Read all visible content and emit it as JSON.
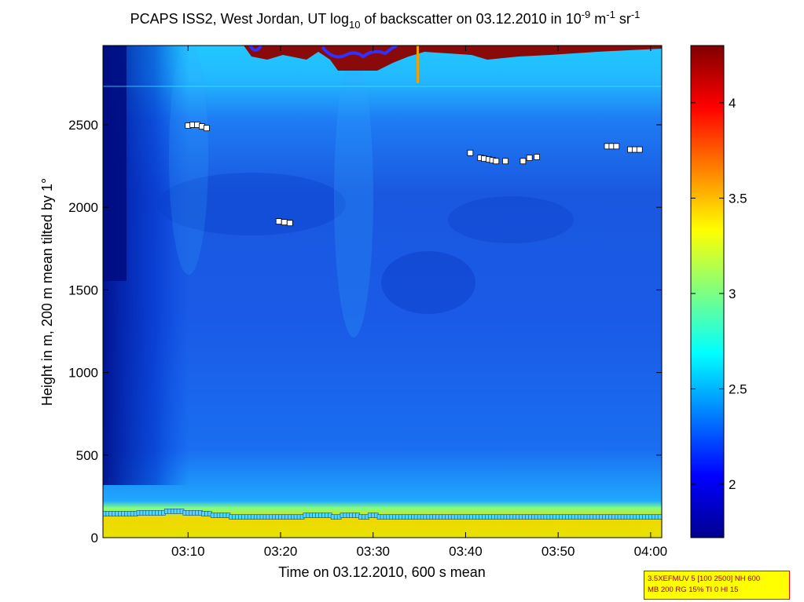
{
  "chart_data": {
    "type": "heatmap",
    "title": {
      "t1": "PCAPS ISS2, West Jordan, UT log",
      "t1_sub": "10",
      "t2": " of backscatter on 03.12.2010 in 10",
      "t2_sup": "-9",
      "t3": " m",
      "t3_sup": "-1",
      "t4": " sr",
      "t4_sup": "-1"
    },
    "xlabel": "Time on 03.12.2010, 600 s mean",
    "ylabel": "Height in m, 200 m mean tilted by 1°",
    "x_ticks": [
      "03:10",
      "03:20",
      "03:30",
      "03:40",
      "03:50",
      "04:00"
    ],
    "x_tick_minutes": [
      10,
      20,
      30,
      40,
      50,
      60
    ],
    "xlim_minutes": [
      0.8,
      61.2
    ],
    "y_ticks": [
      0,
      500,
      1000,
      1500,
      2000,
      2500
    ],
    "ylim": [
      0,
      2980
    ],
    "colorbar": {
      "ticks": [
        "2",
        "2.5",
        "3",
        "3.5",
        "4"
      ],
      "tick_values": [
        2,
        2.5,
        3,
        3.5,
        4
      ],
      "range": [
        1.72,
        4.3
      ],
      "colormap": "jet"
    },
    "mixing_layer_height": {
      "x": [
        1,
        2,
        3,
        4,
        5,
        6,
        7,
        8,
        9,
        10,
        11,
        12,
        13,
        14,
        15,
        16,
        17,
        18,
        19,
        20,
        21,
        22,
        23,
        24,
        25,
        26,
        27,
        28,
        29,
        30,
        31,
        32,
        33,
        34,
        35,
        36,
        37,
        38,
        39,
        40,
        41,
        42,
        43,
        44,
        45,
        46,
        47,
        48,
        49,
        50,
        51,
        52,
        53,
        54,
        55,
        56,
        57,
        58,
        59,
        60,
        61
      ],
      "y": [
        145,
        145,
        145,
        145,
        150,
        150,
        150,
        160,
        160,
        150,
        150,
        145,
        135,
        135,
        125,
        125,
        125,
        125,
        125,
        125,
        125,
        125,
        135,
        135,
        135,
        125,
        135,
        135,
        125,
        135,
        125,
        125,
        125,
        125,
        125,
        125,
        125,
        125,
        125,
        125,
        125,
        125,
        125,
        125,
        125,
        125,
        125,
        125,
        125,
        125,
        125,
        125,
        125,
        125,
        125,
        125,
        125,
        125,
        125,
        125,
        125
      ]
    },
    "cloud_detections": [
      {
        "x": 10.0,
        "y": 2495
      },
      {
        "x": 10.5,
        "y": 2500
      },
      {
        "x": 11.0,
        "y": 2500
      },
      {
        "x": 11.5,
        "y": 2490
      },
      {
        "x": 12.0,
        "y": 2480
      },
      {
        "x": 19.8,
        "y": 1915
      },
      {
        "x": 20.4,
        "y": 1910
      },
      {
        "x": 21.0,
        "y": 1905
      },
      {
        "x": 40.5,
        "y": 2330
      },
      {
        "x": 41.6,
        "y": 2300
      },
      {
        "x": 42.0,
        "y": 2295
      },
      {
        "x": 42.5,
        "y": 2290
      },
      {
        "x": 42.9,
        "y": 2285
      },
      {
        "x": 43.3,
        "y": 2280
      },
      {
        "x": 44.3,
        "y": 2280
      },
      {
        "x": 46.2,
        "y": 2280
      },
      {
        "x": 46.9,
        "y": 2300
      },
      {
        "x": 47.7,
        "y": 2305
      },
      {
        "x": 55.3,
        "y": 2370
      },
      {
        "x": 55.8,
        "y": 2370
      },
      {
        "x": 56.3,
        "y": 2370
      },
      {
        "x": 57.8,
        "y": 2350
      },
      {
        "x": 58.3,
        "y": 2350
      },
      {
        "x": 58.8,
        "y": 2350
      }
    ],
    "grid": false,
    "legend": "colorbar-right"
  },
  "info_box": {
    "line1": "3.5XEFMUV 5 [100 2500] NH 600",
    "line2": "MB 200 RG 15% TI 0 HI 15"
  },
  "colors": {
    "box_fill": "#ffff00",
    "box_border": "#ff0000",
    "marker_mlh": "#4fd8ff",
    "marker_cloud": "#ffffff"
  }
}
